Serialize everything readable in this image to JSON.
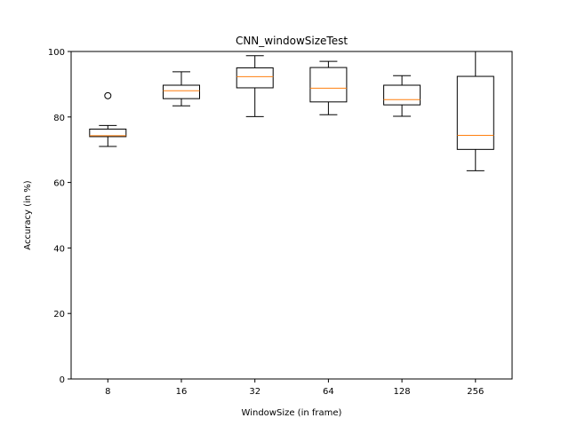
{
  "chart_data": {
    "type": "box",
    "title": "CNN_windowSizeTest",
    "xlabel": "WindowSize (in frame)",
    "ylabel": "Accuracy (in %)",
    "ylim": [
      0,
      100
    ],
    "yticks": [
      0,
      20,
      40,
      60,
      80,
      100
    ],
    "categories": [
      "8",
      "16",
      "32",
      "64",
      "128",
      "256"
    ],
    "boxes": [
      {
        "category": "8",
        "whisker_low": 71,
        "q1": 74,
        "median": 74.3,
        "q3": 76.3,
        "whisker_high": 77.4,
        "outliers": [
          86.5
        ]
      },
      {
        "category": "16",
        "whisker_low": 83.4,
        "q1": 85.6,
        "median": 88,
        "q3": 89.7,
        "whisker_high": 93.8,
        "outliers": []
      },
      {
        "category": "32",
        "whisker_low": 80.1,
        "q1": 88.9,
        "median": 92.3,
        "q3": 95,
        "whisker_high": 98.7,
        "outliers": []
      },
      {
        "category": "64",
        "whisker_low": 80.7,
        "q1": 84.6,
        "median": 88.8,
        "q3": 95.1,
        "whisker_high": 97,
        "outliers": []
      },
      {
        "category": "128",
        "whisker_low": 80.2,
        "q1": 83.7,
        "median": 85.3,
        "q3": 89.7,
        "whisker_high": 92.6,
        "outliers": []
      },
      {
        "category": "256",
        "whisker_low": 63.6,
        "q1": 70.1,
        "median": 74.4,
        "q3": 92.4,
        "whisker_high": 100,
        "outliers": []
      }
    ],
    "colors": {
      "box": "#000000",
      "median": "#ff7f0e"
    },
    "grid": false,
    "legend": "none"
  }
}
